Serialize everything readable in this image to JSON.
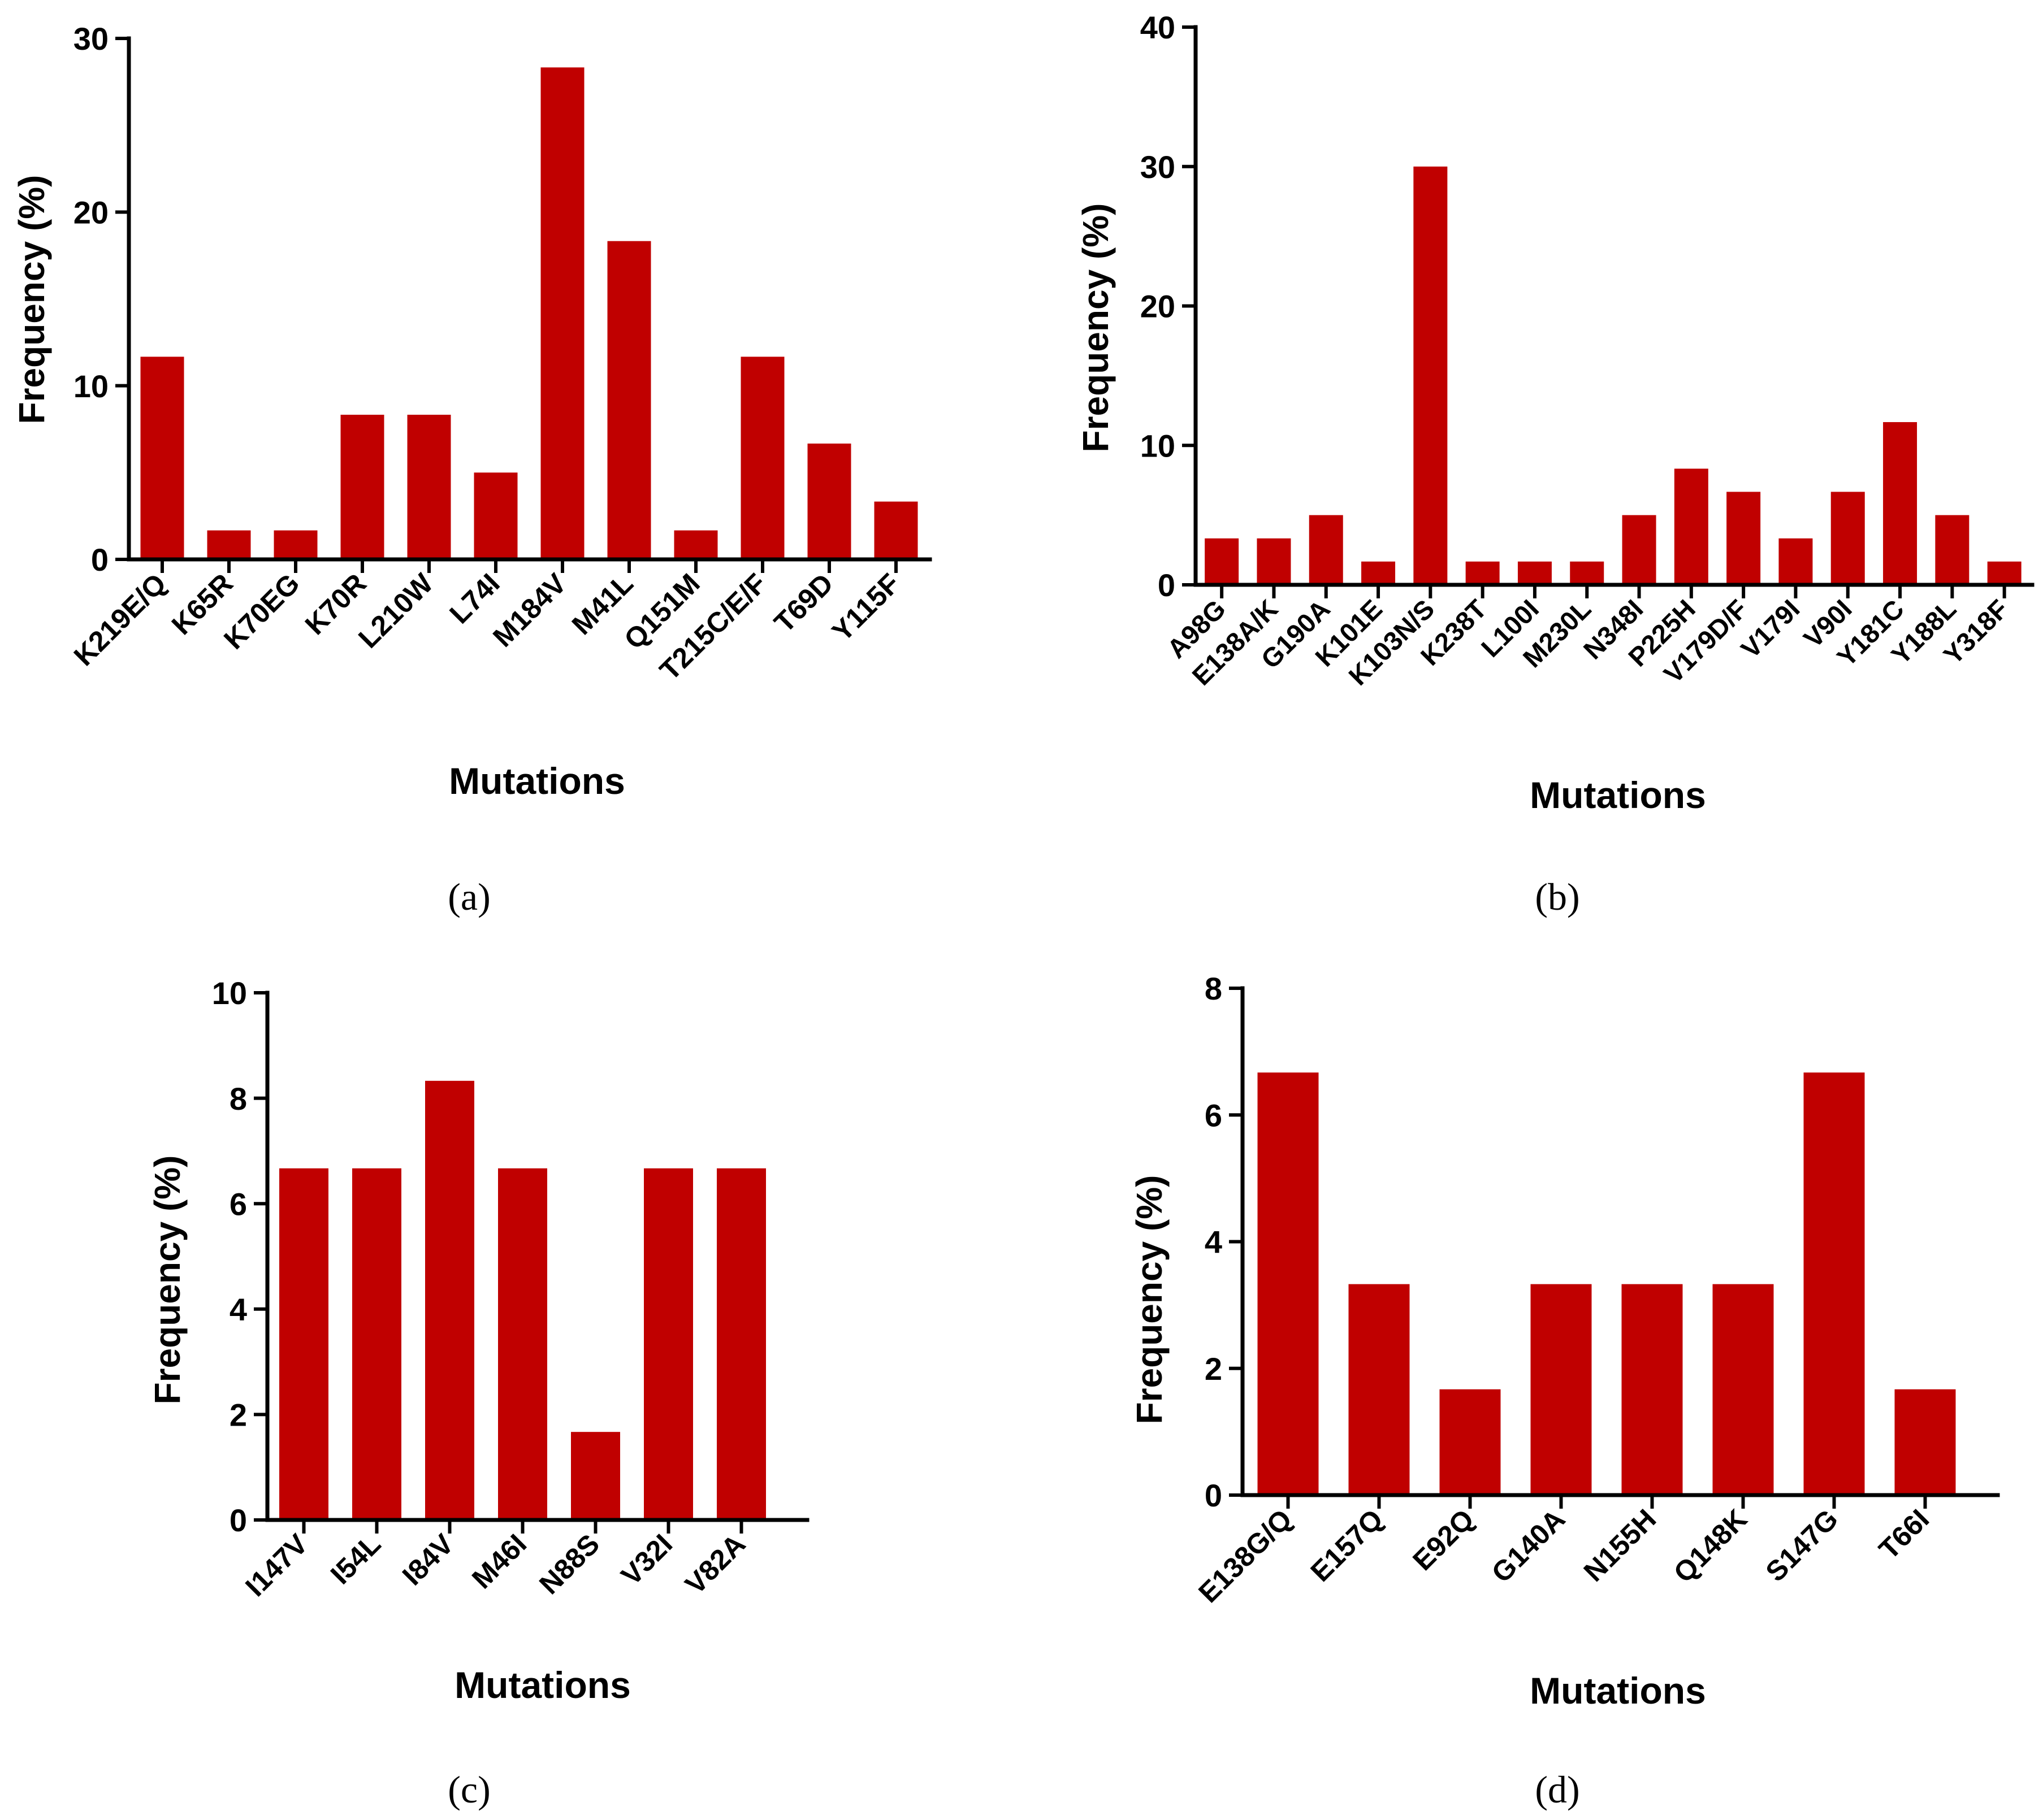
{
  "bar_color": "#C00000",
  "chart_data": [
    {
      "type": "bar",
      "caption": "(a)",
      "title": "",
      "xlabel": "Mutations",
      "ylabel": "Frequency (%)",
      "ylim": [
        0,
        30
      ],
      "yticks": [
        0,
        10,
        20,
        30
      ],
      "categories": [
        "K219E/Q",
        "K65R",
        "K70EG",
        "K70R",
        "L210W",
        "L74I",
        "M184V",
        "M41L",
        "Q151M",
        "T215C/E/F",
        "T69D",
        "Y115F"
      ],
      "values": [
        11.67,
        1.67,
        1.67,
        8.33,
        8.33,
        5.0,
        28.33,
        18.33,
        1.67,
        11.67,
        6.67,
        3.33
      ]
    },
    {
      "type": "bar",
      "caption": "(b)",
      "title": "",
      "xlabel": "Mutations",
      "ylabel": "Frequency (%)",
      "ylim": [
        0,
        40
      ],
      "yticks": [
        0,
        10,
        20,
        30,
        40
      ],
      "categories": [
        "A98G",
        "E138A/K",
        "G190A",
        "K101E",
        "K103N/S",
        "K238T",
        "L100I",
        "M230L",
        "N348I",
        "P225H",
        "V179D/F",
        "V179I",
        "V90I",
        "Y181C",
        "Y188L",
        "Y318F"
      ],
      "values": [
        3.33,
        3.33,
        5.0,
        1.67,
        30.0,
        1.67,
        1.67,
        1.67,
        5.0,
        8.33,
        6.67,
        3.33,
        6.67,
        11.67,
        5.0,
        1.67
      ]
    },
    {
      "type": "bar",
      "caption": "(c)",
      "title": "",
      "xlabel": "Mutations",
      "ylabel": "Frequency (%)",
      "ylim": [
        0,
        10
      ],
      "yticks": [
        0,
        2,
        4,
        6,
        8,
        10
      ],
      "categories": [
        "I147V",
        "I54L",
        "I84V",
        "M46I",
        "N88S",
        "V32I",
        "V82A"
      ],
      "values": [
        6.67,
        6.67,
        8.33,
        6.67,
        1.67,
        6.67,
        6.67
      ]
    },
    {
      "type": "bar",
      "caption": "(d)",
      "title": "",
      "xlabel": "Mutations",
      "ylabel": "Frequency (%)",
      "ylim": [
        0,
        8
      ],
      "yticks": [
        0,
        2,
        4,
        6,
        8
      ],
      "categories": [
        "E138G/Q",
        "E157Q",
        "E92Q",
        "G140A",
        "N155H",
        "Q148K",
        "S147G",
        "T66I"
      ],
      "values": [
        6.67,
        3.33,
        1.67,
        3.33,
        3.33,
        3.33,
        6.67,
        1.67
      ]
    }
  ]
}
